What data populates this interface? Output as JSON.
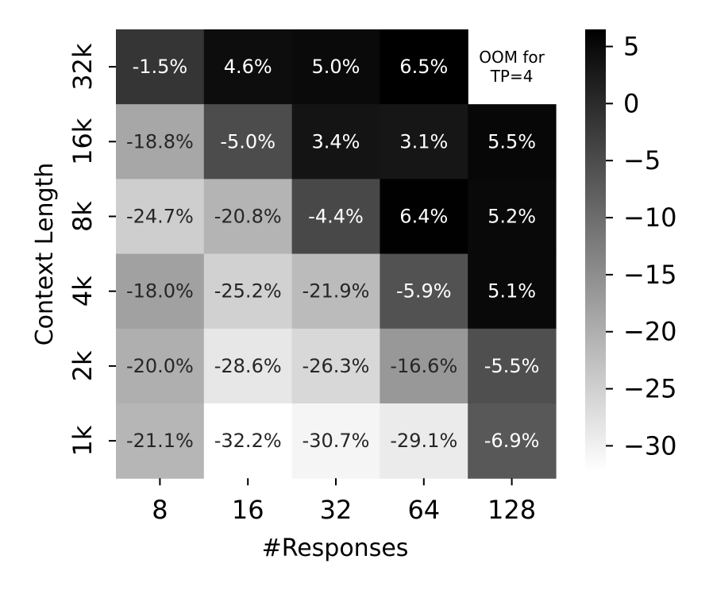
{
  "chart_data": {
    "type": "heatmap",
    "xlabel": "#Responses",
    "ylabel": "Context Length",
    "x_categories": [
      "8",
      "16",
      "32",
      "64",
      "128"
    ],
    "y_categories": [
      "32k",
      "16k",
      "8k",
      "4k",
      "2k",
      "1k"
    ],
    "values": [
      [
        -1.5,
        4.6,
        5.0,
        6.5,
        null
      ],
      [
        -18.8,
        -5.0,
        3.4,
        3.1,
        5.5
      ],
      [
        -24.7,
        -20.8,
        -4.4,
        6.4,
        5.2
      ],
      [
        -18.0,
        -25.2,
        -21.9,
        -5.9,
        5.1
      ],
      [
        -20.0,
        -28.6,
        -26.3,
        -16.6,
        -5.5
      ],
      [
        -21.1,
        -32.2,
        -30.7,
        -29.1,
        -6.9
      ]
    ],
    "cell_labels": [
      [
        "-1.5%",
        "4.6%",
        "5.0%",
        "6.5%",
        ""
      ],
      [
        "-18.8%",
        "-5.0%",
        "3.4%",
        "3.1%",
        "5.5%"
      ],
      [
        "-24.7%",
        "-20.8%",
        "-4.4%",
        "6.4%",
        "5.2%"
      ],
      [
        "-18.0%",
        "-25.2%",
        "-21.9%",
        "-5.9%",
        "5.1%"
      ],
      [
        "-20.0%",
        "-28.6%",
        "-26.3%",
        "-16.6%",
        "-5.5%"
      ],
      [
        "-21.1%",
        "-32.2%",
        "-30.7%",
        "-29.1%",
        "-6.9%"
      ]
    ],
    "missing_cell_note": [
      "OOM for",
      "TP=4"
    ],
    "colormap": "Greys",
    "color_range": [
      -32.2,
      6.5
    ],
    "colorbar_ticks": [
      5,
      0,
      -5,
      -10,
      -15,
      -20,
      -25,
      -30
    ],
    "colorbar_tick_labels": [
      "5",
      "0",
      "−5",
      "−10",
      "−15",
      "−20",
      "−25",
      "−30"
    ]
  }
}
